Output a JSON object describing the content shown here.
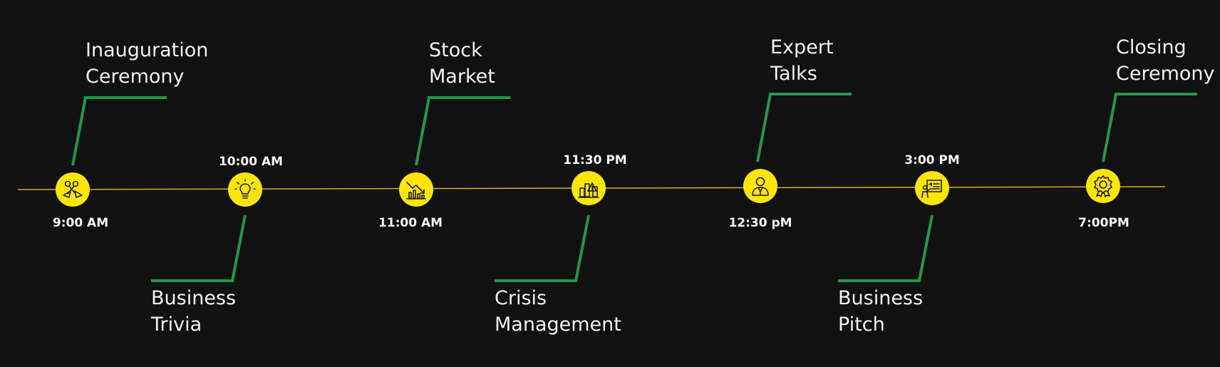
{
  "timeline": {
    "colors": {
      "background": "#111111",
      "axis": "#d4b021",
      "connector": "#1e9a4a",
      "node": "#ffe600",
      "icon": "#1a1a1a",
      "text": "#f2f2f2"
    },
    "events": [
      {
        "title_line1": "Inauguration",
        "title_line2": "Ceremony",
        "time": "9:00 AM",
        "icon": "ribbon-scissors-icon",
        "side": "top"
      },
      {
        "title_line1": "Business",
        "title_line2": "Trivia",
        "time": "10:00 AM",
        "icon": "lightbulb-icon",
        "side": "bottom"
      },
      {
        "title_line1": "Stock",
        "title_line2": "Market",
        "time": "11:00 AM",
        "icon": "stock-chart-icon",
        "side": "top"
      },
      {
        "title_line1": "Crisis",
        "title_line2": "Management",
        "time": "11:30 PM",
        "icon": "crisis-building-icon",
        "side": "bottom"
      },
      {
        "title_line1": "Expert",
        "title_line2": "Talks",
        "time": "12:30 pM",
        "icon": "speaker-person-icon",
        "side": "top"
      },
      {
        "title_line1": "Business",
        "title_line2": "Pitch",
        "time": "3:00 PM",
        "icon": "presentation-icon",
        "side": "bottom"
      },
      {
        "title_line1": "Closing",
        "title_line2": "Ceremony",
        "time": "7:00PM",
        "icon": "award-badge-icon",
        "side": "top"
      }
    ]
  }
}
